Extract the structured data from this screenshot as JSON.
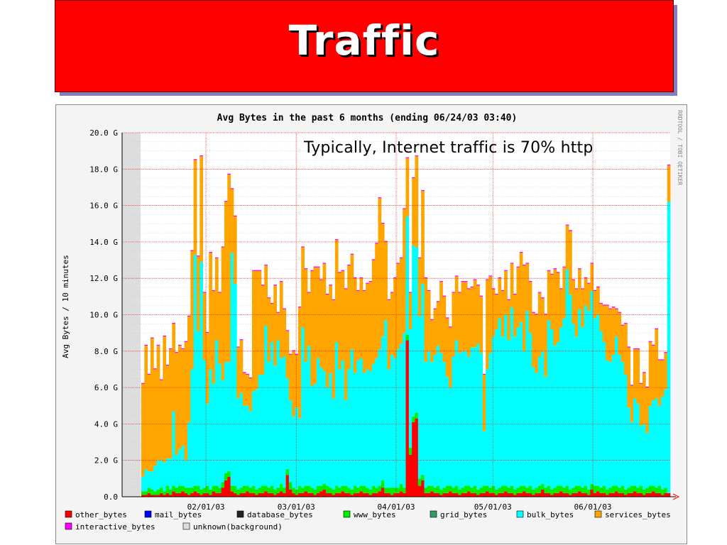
{
  "slide": {
    "title": "Traffic",
    "annotation": "Typically, Internet traffic is 70% http"
  },
  "chart_data": {
    "type": "area",
    "title": "Avg Bytes in the past 6 months (ending 06/24/03 03:40)",
    "ylabel": "Avg Bytes / 10 minutes",
    "xlabel": "",
    "watermark": "RRDTOOL / TOBI OETIKER",
    "ylim": [
      0,
      20
    ],
    "yticks": [
      "0.0",
      "2.0 G",
      "4.0 G",
      "6.0 G",
      "8.0 G",
      "10.0 G",
      "12.0 G",
      "14.0 G",
      "16.0 G",
      "18.0 G",
      "20.0 G"
    ],
    "xticks": [
      {
        "label": "02/01/03",
        "day": 31
      },
      {
        "label": "03/01/03",
        "day": 59
      },
      {
        "label": "04/01/03",
        "day": 90
      },
      {
        "label": "05/01/03",
        "day": 120
      },
      {
        "label": "06/01/03",
        "day": 151
      }
    ],
    "x_start_day": 5,
    "x_end_day": 175,
    "legend": [
      {
        "name": "other_bytes",
        "color": "#ff0000"
      },
      {
        "name": "mail_bytes",
        "color": "#0000ff"
      },
      {
        "name": "database_bytes",
        "color": "#222222"
      },
      {
        "name": "www_bytes",
        "color": "#00ee00"
      },
      {
        "name": "grid_bytes",
        "color": "#339966"
      },
      {
        "name": "bulk_bytes",
        "color": "#00ffff"
      },
      {
        "name": "services_bytes",
        "color": "#ffa500"
      },
      {
        "name": "interactive_bytes",
        "color": "#ff00ff"
      },
      {
        "name": "unknown(background)",
        "color": "#dddddd"
      }
    ],
    "series": [
      {
        "name": "other_bytes",
        "values": [
          0.1,
          0.1,
          0.2,
          0.1,
          0.1,
          0.1,
          0.2,
          0.1,
          0.2,
          0.1,
          0.3,
          0.2,
          0.2,
          0.3,
          0.2,
          0.1,
          0.2,
          0.3,
          0.2,
          0.1,
          0.2,
          0.2,
          0.1,
          0.3,
          0.2,
          0.2,
          0.5,
          0.9,
          1.1,
          0.3,
          0.2,
          0.1,
          0.2,
          0.2,
          0.3,
          0.2,
          0.2,
          0.1,
          0.2,
          0.2,
          0.3,
          0.2,
          0.2,
          0.1,
          0.2,
          0.3,
          0.2,
          1.2,
          0.4,
          0.2,
          0.1,
          0.2,
          0.2,
          0.3,
          0.2,
          0.2,
          0.1,
          0.2,
          0.3,
          0.4,
          0.2,
          0.2,
          0.1,
          0.2,
          0.2,
          0.3,
          0.2,
          0.2,
          0.1,
          0.2,
          0.2,
          0.3,
          0.2,
          0.2,
          0.1,
          0.2,
          0.2,
          0.3,
          0.5,
          0.2,
          0.2,
          0.1,
          0.2,
          0.2,
          0.3,
          0.2,
          8.6,
          2.3,
          4.1,
          4.3,
          0.6,
          0.9,
          0.2,
          0.2,
          0.3,
          0.2,
          0.2,
          0.1,
          0.2,
          0.2,
          0.3,
          0.2,
          0.2,
          0.1,
          0.2,
          0.2,
          0.3,
          0.2,
          0.2,
          0.1,
          0.2,
          0.2,
          0.3,
          0.2,
          0.2,
          0.1,
          0.2,
          0.2,
          0.3,
          0.2,
          0.2,
          0.1,
          0.2,
          0.2,
          0.3,
          0.2,
          0.2,
          0.1,
          0.2,
          0.2,
          0.4,
          0.2,
          0.2,
          0.1,
          0.2,
          0.2,
          0.3,
          0.2,
          0.2,
          0.1,
          0.2,
          0.2,
          0.3,
          0.2,
          0.2,
          0.1,
          0.4,
          0.2,
          0.3,
          0.2,
          0.2,
          0.1,
          0.2,
          0.2,
          0.3,
          0.2,
          0.2,
          0.1,
          0.2,
          0.2,
          0.3,
          0.2,
          0.2,
          0.1,
          0.2,
          0.2,
          0.3,
          0.2,
          0.2,
          0.1,
          0.2,
          0.2
        ]
      },
      {
        "name": "www_bytes",
        "values": [
          0.2,
          0.2,
          0.3,
          0.3,
          0.2,
          0.3,
          0.3,
          0.2,
          0.4,
          0.3,
          0.3,
          0.3,
          0.4,
          0.3,
          0.3,
          0.4,
          0.3,
          0.3,
          0.4,
          0.3,
          0.3,
          0.4,
          0.3,
          0.3,
          0.4,
          0.3,
          0.3,
          0.4,
          0.3,
          0.3,
          0.4,
          0.3,
          0.3,
          0.4,
          0.3,
          0.3,
          0.4,
          0.3,
          0.3,
          0.4,
          0.3,
          0.3,
          0.4,
          0.3,
          0.3,
          0.4,
          0.3,
          0.3,
          0.4,
          0.3,
          0.3,
          0.4,
          0.3,
          0.3,
          0.4,
          0.3,
          0.3,
          0.4,
          0.3,
          0.3,
          0.4,
          0.3,
          0.3,
          0.4,
          0.3,
          0.3,
          0.4,
          0.3,
          0.3,
          0.4,
          0.3,
          0.3,
          0.4,
          0.3,
          0.3,
          0.4,
          0.3,
          0.3,
          0.4,
          0.3,
          0.3,
          0.4,
          0.3,
          0.3,
          0.4,
          0.3,
          0.3,
          0.4,
          0.3,
          0.3,
          0.4,
          0.3,
          0.3,
          0.4,
          0.3,
          0.3,
          0.4,
          0.3,
          0.3,
          0.4,
          0.3,
          0.3,
          0.4,
          0.3,
          0.3,
          0.4,
          0.3,
          0.3,
          0.4,
          0.3,
          0.3,
          0.4,
          0.3,
          0.3,
          0.4,
          0.3,
          0.3,
          0.4,
          0.3,
          0.3,
          0.4,
          0.3,
          0.3,
          0.4,
          0.3,
          0.3,
          0.4,
          0.3,
          0.3,
          0.4,
          0.3,
          0.3,
          0.4,
          0.3,
          0.3,
          0.4,
          0.3,
          0.3,
          0.4,
          0.3,
          0.3,
          0.4,
          0.3,
          0.3,
          0.4,
          0.3,
          0.3,
          0.4,
          0.3,
          0.3,
          0.4,
          0.3,
          0.3,
          0.4,
          0.3,
          0.3,
          0.4,
          0.3,
          0.3,
          0.4,
          0.3,
          0.3,
          0.4,
          0.3,
          0.3,
          0.4,
          0.3,
          0.3,
          0.4,
          0.3,
          0.3
        ]
      },
      {
        "name": "bulk_bytes",
        "values": [
          0.8,
          1.2,
          0.9,
          1.0,
          1.4,
          1.6,
          1.5,
          1.6,
          1.5,
          1.7,
          4.1,
          1.8,
          2.0,
          2.2,
          1.5,
          3.6,
          6.5,
          12.7,
          8.5,
          12.5,
          7.0,
          4.5,
          6.6,
          5.6,
          8.0,
          6.8,
          5.6,
          6.1,
          6.0,
          12.8,
          11.1,
          5.0,
          5.2,
          4.4,
          4.4,
          4.2,
          5.2,
          5.5,
          6.2,
          6.1,
          8.8,
          6.9,
          7.9,
          6.8,
          8.1,
          6.9,
          7.2,
          5.0,
          4.5,
          3.9,
          4.5,
          3.7,
          8.8,
          6.8,
          7.7,
          5.6,
          5.8,
          7.0,
          6.5,
          6.2,
          5.4,
          6.3,
          5.0,
          7.9,
          6.5,
          6.9,
          4.7,
          6.5,
          7.7,
          6.2,
          7.0,
          7.0,
          6.2,
          6.5,
          6.5,
          6.7,
          7.1,
          7.5,
          7.9,
          9.2,
          6.5,
          7.3,
          7.1,
          7.6,
          7.7,
          8.5,
          6.5,
          6.5,
          9.4,
          9.1,
          8.9,
          10.5,
          6.9,
          7.4,
          6.8,
          7.3,
          7.7,
          7.5,
          6.9,
          6.0,
          5.4,
          7.2,
          8.0,
          7.5,
          7.5,
          7.4,
          7.1,
          7.7,
          7.6,
          8.0,
          7.4,
          3.0,
          6.4,
          7.4,
          8.2,
          8.8,
          9.3,
          8.2,
          9.4,
          8.1,
          9.8,
          8.4,
          8.8,
          9.0,
          7.4,
          9.7,
          8.4,
          6.7,
          6.3,
          7.1,
          7.3,
          6.1,
          9.1,
          8.8,
          7.8,
          7.9,
          8.7,
          9.3,
          11.9,
          10.7,
          9.0,
          8.2,
          9.7,
          8.8,
          9.9,
          9.8,
          10.6,
          9.2,
          9.4,
          8.6,
          7.9,
          7.1,
          6.9,
          7.2,
          8.2,
          7.3,
          6.8,
          6.3,
          4.4,
          3.5,
          4.8,
          4.6,
          3.3,
          3.6,
          3.0,
          4.4,
          4.7,
          4.9,
          4.4,
          5.1,
          5.4,
          16.0,
          13.2,
          4.2,
          3.5,
          4.0
        ]
      },
      {
        "name": "services_bytes",
        "values": [
          5.1,
          6.8,
          5.3,
          7.3,
          5.3,
          6.3,
          4.4,
          6.9,
          5.1,
          6.0,
          4.8,
          5.6,
          5.7,
          5.3,
          6.5,
          5.8,
          6.5,
          5.2,
          4.1,
          5.8,
          3.7,
          3.9,
          6.4,
          5.1,
          4.5,
          3.9,
          7.3,
          8.8,
          10.3,
          3.5,
          3.7,
          2.8,
          2.9,
          1.8,
          1.7,
          1.8,
          6.6,
          6.5,
          5.7,
          4.9,
          3.3,
          3.5,
          2.1,
          4.4,
          1.5,
          4.2,
          2.6,
          2.6,
          2.5,
          3.6,
          2.9,
          6.1,
          4.4,
          5.1,
          2.9,
          6.3,
          6.4,
          5.0,
          4.8,
          5.9,
          5.1,
          4.8,
          5.4,
          5.6,
          5.3,
          4.9,
          6.1,
          5.7,
          5.2,
          5.2,
          3.8,
          4.4,
          4.5,
          4.7,
          4.9,
          5.7,
          6.3,
          8.3,
          6.2,
          4.3,
          3.8,
          3.4,
          4.4,
          4.7,
          4.7,
          6.8,
          3.2,
          2.0,
          3.7,
          5.0,
          3.2,
          5.1,
          4.6,
          3.3,
          2.3,
          2.5,
          2.4,
          3.9,
          3.6,
          3.2,
          3.3,
          3.5,
          3.5,
          3.3,
          3.8,
          3.8,
          3.7,
          3.3,
          3.7,
          3.2,
          3.1,
          3.1,
          4.9,
          4.2,
          2.6,
          1.9,
          2.2,
          2.5,
          2.4,
          2.2,
          2.4,
          2.3,
          3.3,
          3.8,
          4.7,
          2.6,
          2.8,
          3.0,
          3.2,
          3.5,
          2.9,
          3.4,
          2.7,
          3.0,
          4.2,
          3.8,
          2.1,
          2.8,
          2.4,
          3.5,
          2.4,
          2.6,
          2.2,
          2.1,
          1.5,
          1.5,
          1.5,
          1.5,
          1.5,
          1.5,
          2.0,
          3.0,
          2.9,
          2.6,
          1.5,
          2.3,
          2.0,
          2.8,
          3.3,
          2.0,
          2.7,
          3.0,
          2.3,
          2.8,
          2.5,
          3.5,
          3.0,
          3.8,
          2.5,
          2.0,
          2.0,
          2.0
        ]
      },
      {
        "name": "interactive_bytes",
        "values": [
          0.05,
          0.05,
          0.05,
          0.05,
          0.05,
          0.05,
          0.05,
          0.05,
          0.05,
          0.05,
          0.05,
          0.05,
          0.05,
          0.05,
          0.05,
          0.05,
          0.05,
          0.05,
          0.05,
          0.05,
          0.05,
          0.05,
          0.05,
          0.05,
          0.05,
          0.05,
          0.05,
          0.05,
          0.05,
          0.05,
          0.05,
          0.05,
          0.05,
          0.05,
          0.05,
          0.05,
          0.05,
          0.05,
          0.05,
          0.05,
          0.05,
          0.05,
          0.05,
          0.05,
          0.05,
          0.05,
          0.05,
          0.05,
          0.05,
          0.05,
          0.05,
          0.05,
          0.05,
          0.05,
          0.05,
          0.05,
          0.05,
          0.05,
          0.05,
          0.05,
          0.05,
          0.05,
          0.05,
          0.05,
          0.05,
          0.05,
          0.05,
          0.05,
          0.05,
          0.05,
          0.05,
          0.05,
          0.05,
          0.05,
          0.05,
          0.05,
          0.05,
          0.05,
          0.05,
          0.05,
          0.05,
          0.05,
          0.05,
          0.05,
          0.05,
          0.05,
          0.05,
          0.05,
          0.05,
          0.05,
          0.05,
          0.05,
          0.05,
          0.05,
          0.05,
          0.05,
          0.05,
          0.05,
          0.05,
          0.05,
          0.05,
          0.05,
          0.05,
          0.05,
          0.05,
          0.05,
          0.05,
          0.05,
          0.05,
          0.05,
          0.05,
          0.05,
          0.05,
          0.05,
          0.05,
          0.05,
          0.05,
          0.05,
          0.05,
          0.05,
          0.05,
          0.05,
          0.05,
          0.05,
          0.05,
          0.05,
          0.05,
          0.05,
          0.05,
          0.05,
          0.05,
          0.05,
          0.05,
          0.05,
          0.05,
          0.05,
          0.05,
          0.05,
          0.05,
          0.05,
          0.05,
          0.05,
          0.05,
          0.05,
          0.05,
          0.05,
          0.05,
          0.05,
          0.05,
          0.05,
          0.05,
          0.05,
          0.05,
          0.05,
          0.05,
          0.05,
          0.05,
          0.05,
          0.05,
          0.05,
          0.05,
          0.05,
          0.05,
          0.05,
          0.05,
          0.05,
          0.05,
          0.05,
          0.05,
          0.05,
          0.05,
          0.05,
          0.05,
          0.05
        ]
      }
    ],
    "grid": true
  }
}
